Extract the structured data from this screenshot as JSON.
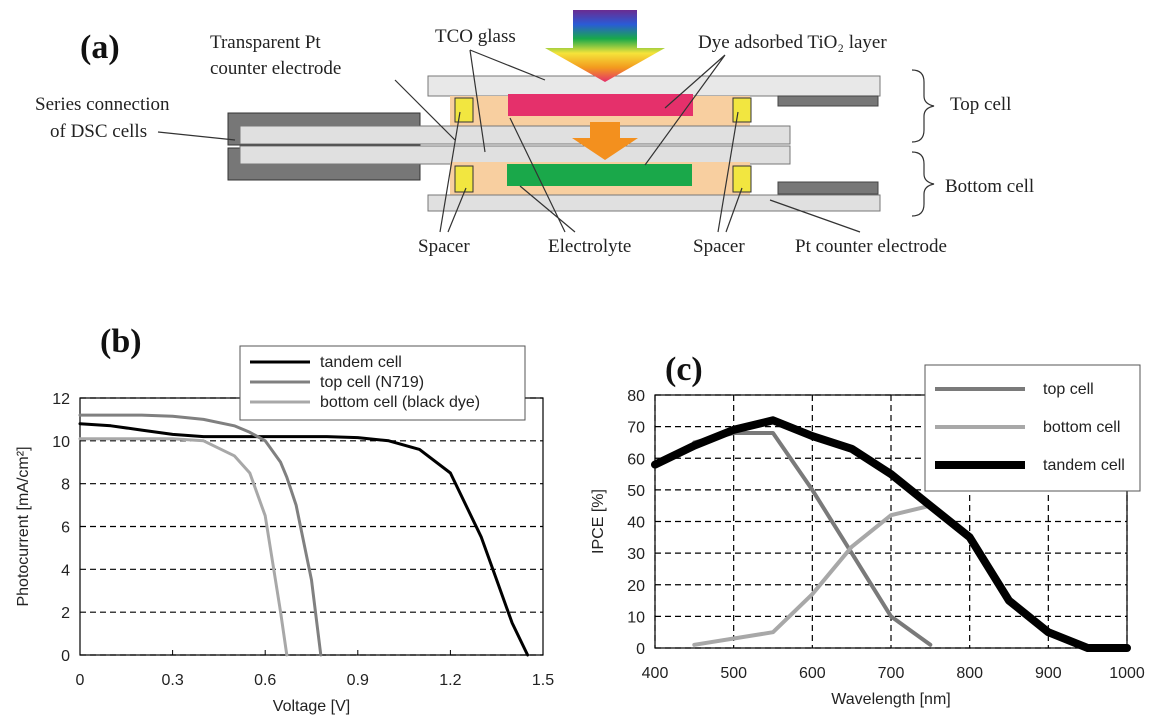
{
  "diagram": {
    "panel": "(a)",
    "labels": [
      "Transparent Pt",
      "counter electrode",
      "TCO glass",
      "Dye adsorbed TiO₂ layer",
      "Series connection",
      "of DSC cells",
      "Top cell",
      "Bottom cell",
      "Spacer",
      "Electrolyte",
      "Spacer",
      "Pt counter electrode"
    ]
  },
  "chart_data": [
    {
      "type": "line",
      "panel": "(b)",
      "x_label": "Voltage [V]",
      "y_label": "Photocurrent [mA/cm²]",
      "x": [
        0,
        0.1,
        0.2,
        0.3,
        0.4,
        0.5,
        0.55,
        0.6,
        0.65,
        0.67,
        0.7,
        0.75,
        0.78,
        0.8,
        0.9,
        1.0,
        1.1,
        1.2,
        1.3,
        1.35,
        1.4,
        1.45
      ],
      "series": [
        {
          "name": "tandem cell",
          "color": "#000000",
          "values": [
            10.8,
            10.7,
            10.5,
            10.3,
            10.2,
            10.2,
            10.2,
            10.2,
            10.2,
            10.2,
            10.2,
            10.2,
            10.2,
            10.2,
            10.15,
            10.0,
            9.6,
            8.5,
            5.5,
            3.5,
            1.5,
            0
          ]
        },
        {
          "name": "top cell (N719)",
          "color": "#808080",
          "values": [
            11.2,
            11.2,
            11.2,
            11.15,
            11.0,
            10.7,
            10.4,
            10.0,
            9.0,
            8.3,
            7.0,
            3.5,
            0,
            null,
            null,
            null,
            null,
            null,
            null,
            null,
            null,
            null
          ]
        },
        {
          "name": "bottom cell (black dye)",
          "color": "#a8a8a8",
          "values": [
            10.1,
            10.1,
            10.1,
            10.1,
            10.0,
            9.3,
            8.5,
            6.5,
            2.0,
            0,
            null,
            null,
            null,
            null,
            null,
            null,
            null,
            null,
            null,
            null,
            null,
            null
          ]
        }
      ],
      "xlim": [
        0,
        1.5
      ],
      "xticks": [
        0,
        0.3,
        0.6,
        0.9,
        1.2,
        1.5
      ],
      "ylim": [
        0,
        12
      ],
      "yticks": [
        0,
        2,
        4,
        6,
        8,
        10,
        12
      ],
      "grid": "y",
      "legend": "upper right"
    },
    {
      "type": "line",
      "panel": "(c)",
      "x_label": "Wavelength [nm]",
      "y_label": "IPCE [%]",
      "x": [
        400,
        450,
        500,
        550,
        600,
        650,
        700,
        750,
        800,
        850,
        900,
        950,
        1000
      ],
      "series": [
        {
          "name": "top cell",
          "color": "#7a7a7a",
          "values": [
            null,
            65,
            68,
            68,
            50,
            30,
            10,
            1,
            null,
            null,
            null,
            null,
            null
          ]
        },
        {
          "name": "bottom cell",
          "color": "#a8a8a8",
          "values": [
            null,
            1,
            3,
            5,
            17,
            32,
            42,
            45,
            null,
            null,
            null,
            null,
            null
          ]
        },
        {
          "name": "tandem cell",
          "color": "#000000",
          "values": [
            58,
            64,
            69,
            72,
            67,
            63,
            55,
            45,
            35,
            15,
            5,
            0,
            0
          ]
        }
      ],
      "xlim": [
        400,
        1000
      ],
      "xticks": [
        400,
        500,
        600,
        700,
        800,
        900,
        1000
      ],
      "ylim": [
        0,
        80
      ],
      "yticks": [
        0,
        10,
        20,
        30,
        40,
        50,
        60,
        70,
        80
      ],
      "grid": "both",
      "legend": "upper right"
    }
  ]
}
